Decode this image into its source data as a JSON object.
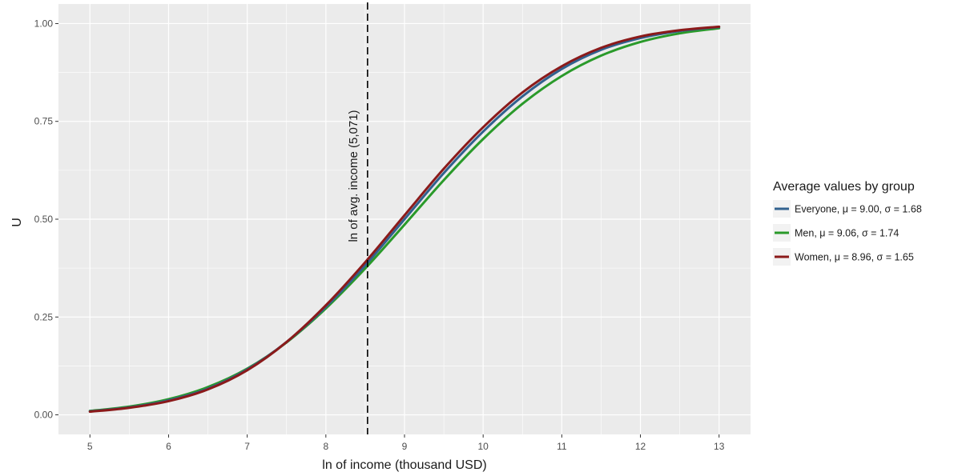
{
  "chart_data": {
    "type": "line",
    "xlabel": "ln of income (thousand USD)",
    "ylabel": "U",
    "xlim": [
      4.6,
      13.4
    ],
    "ylim": [
      -0.05,
      1.05
    ],
    "x_ticks": [
      5,
      6,
      7,
      8,
      9,
      10,
      11,
      12,
      13
    ],
    "x_tick_labels": [
      "5",
      "6",
      "7",
      "8",
      "9",
      "10",
      "11",
      "12",
      "13"
    ],
    "y_ticks": [
      0,
      0.25,
      0.5,
      0.75,
      1
    ],
    "y_tick_labels": [
      "0.00",
      "0.25",
      "0.50",
      "0.75",
      "1.00"
    ],
    "grid": true,
    "background": "#ebebeb",
    "legend": {
      "title": "Average values by group",
      "placement": "right"
    },
    "x": [
      5.0,
      5.5,
      6.0,
      6.5,
      7.0,
      7.5,
      8.0,
      8.5,
      9.0,
      9.5,
      10.0,
      10.5,
      11.0,
      11.5,
      12.0,
      12.5,
      13.0
    ],
    "series": [
      {
        "name": "Everyone, μ = 9.00, σ = 1.68",
        "color": "#31618e",
        "values": [
          0.009,
          0.019,
          0.037,
          0.067,
          0.116,
          0.186,
          0.276,
          0.382,
          0.5,
          0.618,
          0.724,
          0.814,
          0.884,
          0.933,
          0.963,
          0.981,
          0.991
        ]
      },
      {
        "name": "Men, μ = 9.06, σ = 1.74",
        "color": "#2a9a2a",
        "values": [
          0.01,
          0.021,
          0.04,
          0.071,
          0.118,
          0.185,
          0.272,
          0.374,
          0.486,
          0.6,
          0.705,
          0.795,
          0.866,
          0.918,
          0.953,
          0.975,
          0.988
        ]
      },
      {
        "name": "Women, μ = 8.96, σ = 1.65",
        "color": "#8b1a1a",
        "values": [
          0.008,
          0.018,
          0.035,
          0.065,
          0.114,
          0.186,
          0.28,
          0.39,
          0.51,
          0.629,
          0.735,
          0.824,
          0.891,
          0.938,
          0.967,
          0.983,
          0.992
        ]
      }
    ],
    "annotations": [
      {
        "type": "vline",
        "x": 8.53,
        "style": "dashed",
        "label": "ln of avg. income (5,071)"
      }
    ]
  }
}
